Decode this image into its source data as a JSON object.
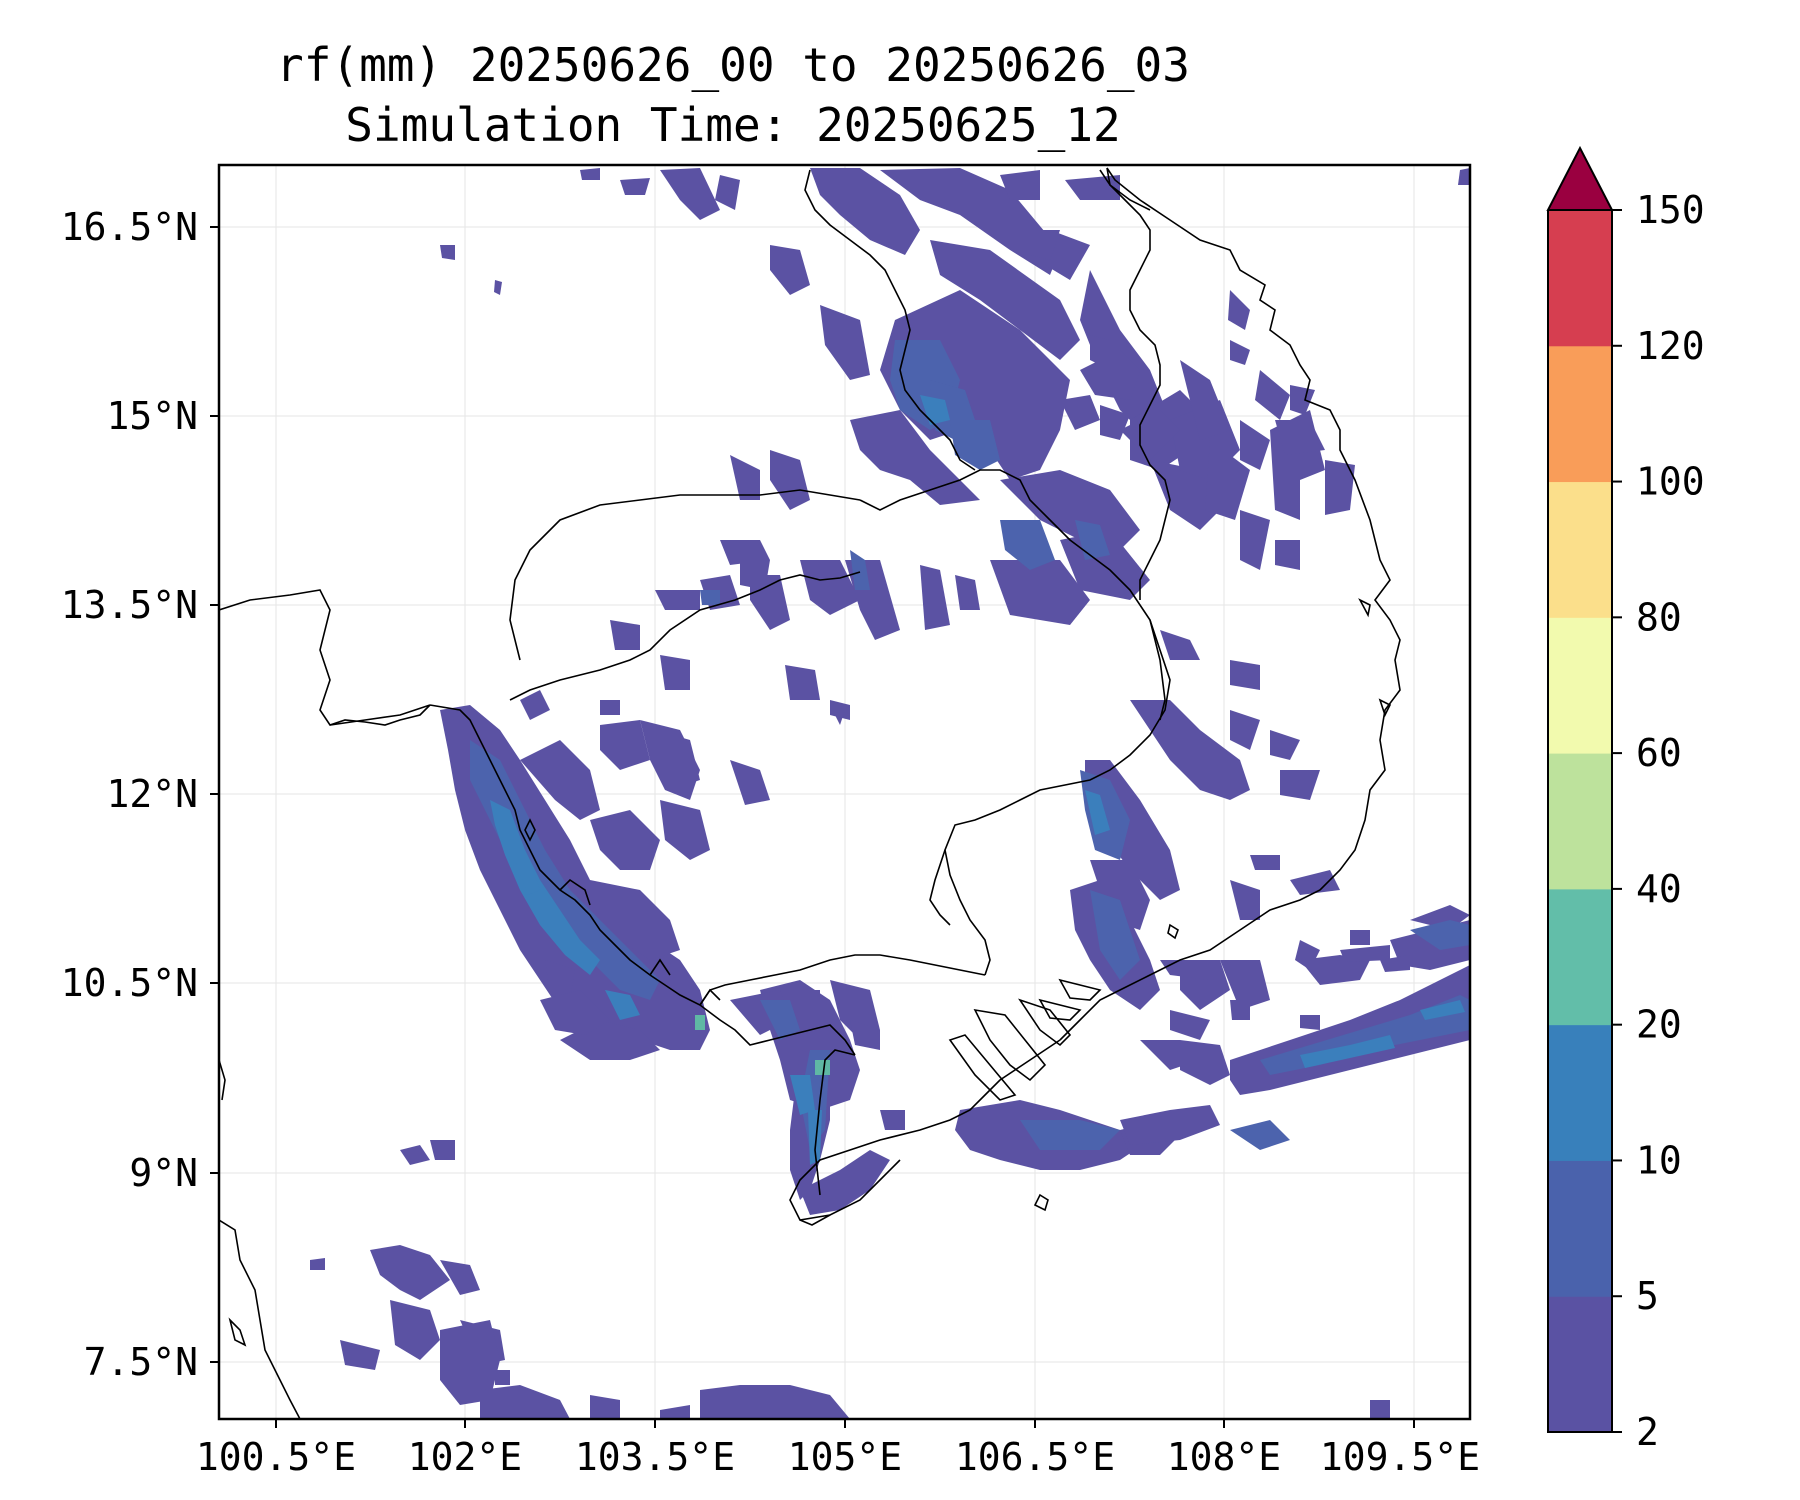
{
  "map": {
    "title_line1": "rf(mm) 20250626_00 to 20250626_03",
    "title_line2": "Simulation Time: 20250625_12",
    "lon_ticks": [
      "100.5°E",
      "102°E",
      "103.5°E",
      "105°E",
      "106.5°E",
      "108°E",
      "109.5°E"
    ],
    "lat_ticks": [
      "16.5°N",
      "15°N",
      "13.5°N",
      "12°N",
      "10.5°N",
      "9°N",
      "7.5°N"
    ]
  },
  "colorbar": {
    "labels": [
      "2",
      "5",
      "10",
      "20",
      "40",
      "60",
      "80",
      "100",
      "120",
      "150"
    ],
    "colors": [
      "#5a52a3",
      "#4a62ac",
      "#3880bb",
      "#62bea9",
      "#bde29c",
      "#f2faae",
      "#fbdf8b",
      "#f99d59",
      "#d63e50"
    ],
    "extend_color": "#9a0040"
  },
  "style": {
    "rain_light": "#5b52a3",
    "rain_moderate": "#3b7fbc",
    "rain_heavy": "#5fb8a4",
    "coastline": "#000000",
    "grid": "#e6e6e6"
  }
}
